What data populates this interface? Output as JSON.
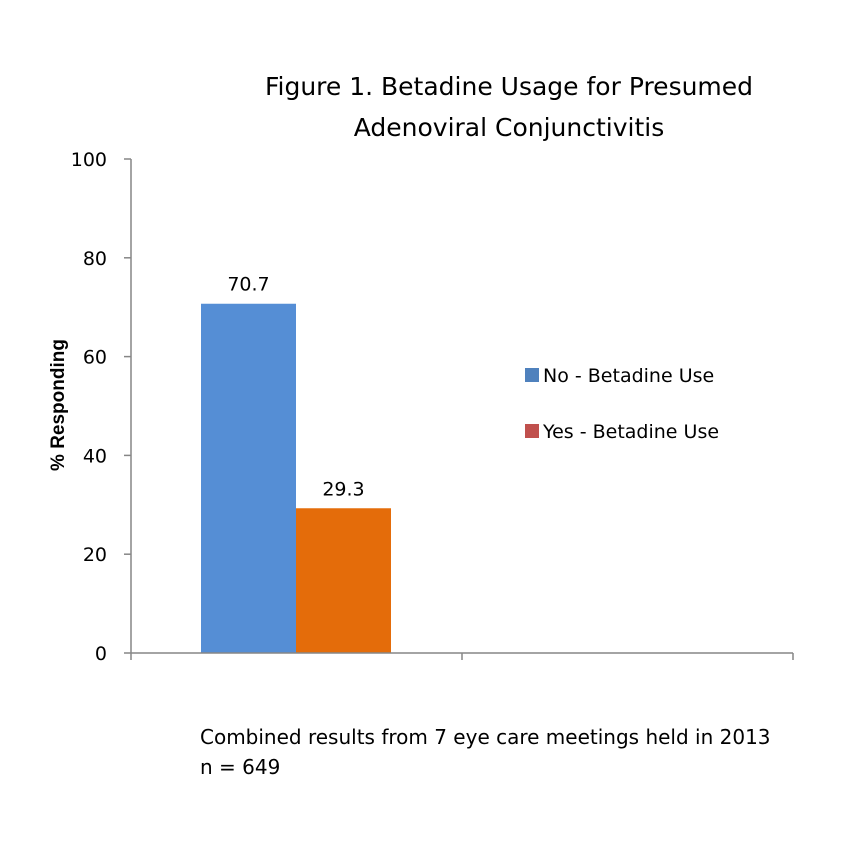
{
  "chart_data": {
    "type": "bar",
    "title_lines": [
      "Figure 1.  Betadine Usage for Presumed",
      "Adenoviral Conjunctivitis"
    ],
    "xlabel": "",
    "ylabel": "% Responding",
    "ylim": [
      0,
      100
    ],
    "yticks": [
      0,
      20,
      40,
      60,
      80,
      100
    ],
    "categories": [
      ""
    ],
    "series": [
      {
        "name": "No - Betadine Use",
        "values": [
          70.7
        ],
        "color": "#558ed5"
      },
      {
        "name": "Yes - Betadine Use",
        "values": [
          29.3
        ],
        "color": "#e46c0a"
      }
    ],
    "legend": {
      "placement": "right",
      "entries": [
        {
          "label": "No - Betadine Use",
          "color": "#4f81bd"
        },
        {
          "label": "Yes - Betadine Use",
          "color": "#c0504d"
        }
      ]
    },
    "grid": false
  },
  "footnote": {
    "line1": "Combined results from 7 eye care meetings held in 2013",
    "line2": "n = 649"
  }
}
